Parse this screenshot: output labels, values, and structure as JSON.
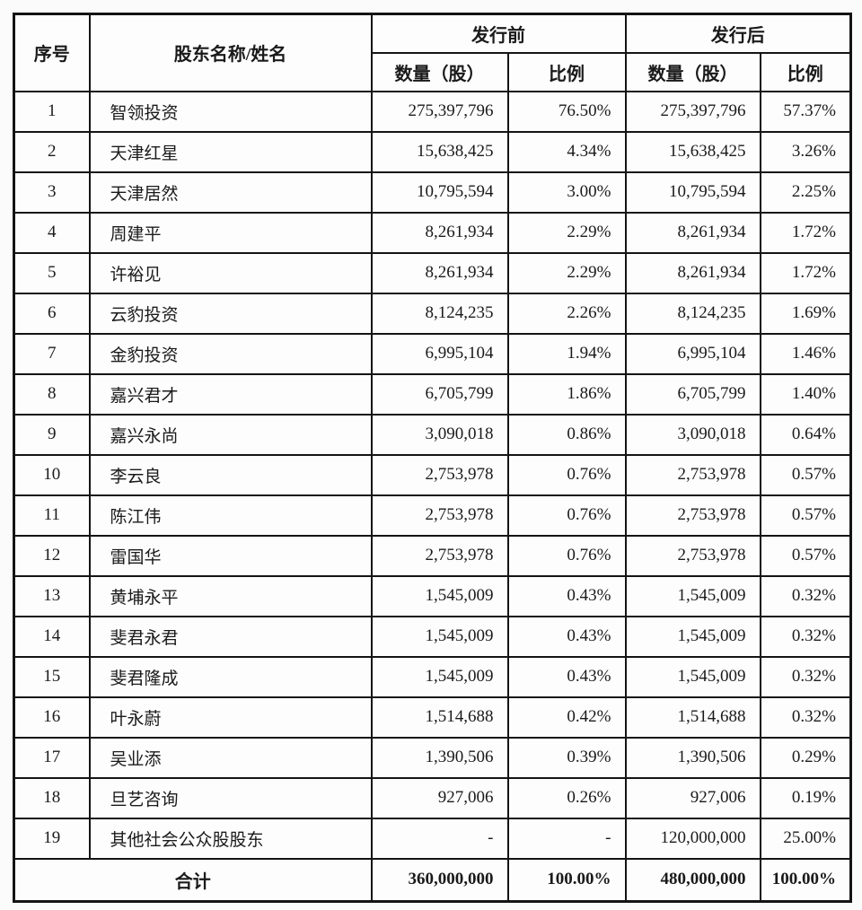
{
  "colors": {
    "page_background": "#fbfbfb",
    "table_background": "#fdfdfd",
    "border": "#141414",
    "text": "#1a1a1a"
  },
  "table": {
    "header": {
      "seq": "序号",
      "name": "股东名称/姓名",
      "pre_issue": "发行前",
      "post_issue": "发行后",
      "sub_headers": [
        "数量（股）",
        "比例",
        "数量（股）",
        "比例"
      ]
    },
    "rows": [
      {
        "cells": [
          "1",
          "智领投资",
          "275,397,796",
          "76.50%",
          "275,397,796",
          "57.37%"
        ]
      },
      {
        "cells": [
          "2",
          "天津红星",
          "15,638,425",
          "4.34%",
          "15,638,425",
          "3.26%"
        ]
      },
      {
        "cells": [
          "3",
          "天津居然",
          "10,795,594",
          "3.00%",
          "10,795,594",
          "2.25%"
        ]
      },
      {
        "cells": [
          "4",
          "周建平",
          "8,261,934",
          "2.29%",
          "8,261,934",
          "1.72%"
        ]
      },
      {
        "cells": [
          "5",
          "许裕见",
          "8,261,934",
          "2.29%",
          "8,261,934",
          "1.72%"
        ]
      },
      {
        "cells": [
          "6",
          "云豹投资",
          "8,124,235",
          "2.26%",
          "8,124,235",
          "1.69%"
        ]
      },
      {
        "cells": [
          "7",
          "金豹投资",
          "6,995,104",
          "1.94%",
          "6,995,104",
          "1.46%"
        ]
      },
      {
        "cells": [
          "8",
          "嘉兴君才",
          "6,705,799",
          "1.86%",
          "6,705,799",
          "1.40%"
        ]
      },
      {
        "cells": [
          "9",
          "嘉兴永尚",
          "3,090,018",
          "0.86%",
          "3,090,018",
          "0.64%"
        ]
      },
      {
        "cells": [
          "10",
          "李云良",
          "2,753,978",
          "0.76%",
          "2,753,978",
          "0.57%"
        ]
      },
      {
        "cells": [
          "11",
          "陈江伟",
          "2,753,978",
          "0.76%",
          "2,753,978",
          "0.57%"
        ]
      },
      {
        "cells": [
          "12",
          "雷国华",
          "2,753,978",
          "0.76%",
          "2,753,978",
          "0.57%"
        ]
      },
      {
        "cells": [
          "13",
          "黄埔永平",
          "1,545,009",
          "0.43%",
          "1,545,009",
          "0.32%"
        ]
      },
      {
        "cells": [
          "14",
          "斐君永君",
          "1,545,009",
          "0.43%",
          "1,545,009",
          "0.32%"
        ]
      },
      {
        "cells": [
          "15",
          "斐君隆成",
          "1,545,009",
          "0.43%",
          "1,545,009",
          "0.32%"
        ]
      },
      {
        "cells": [
          "16",
          "叶永蔚",
          "1,514,688",
          "0.42%",
          "1,514,688",
          "0.32%"
        ]
      },
      {
        "cells": [
          "17",
          "吴业添",
          "1,390,506",
          "0.39%",
          "1,390,506",
          "0.29%"
        ]
      },
      {
        "cells": [
          "18",
          "旦艺咨询",
          "927,006",
          "0.26%",
          "927,006",
          "0.19%"
        ]
      },
      {
        "cells": [
          "19",
          "其他社会公众股股东",
          "-",
          "-",
          "120,000,000",
          "25.00%"
        ]
      }
    ],
    "total": {
      "label": "合计",
      "cells": [
        "360,000,000",
        "100.00%",
        "480,000,000",
        "100.00%"
      ]
    }
  }
}
